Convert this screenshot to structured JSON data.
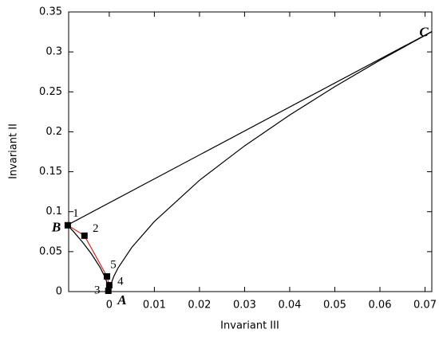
{
  "chart_data": {
    "type": "line",
    "xlabel": "Invariant III",
    "ylabel": "Invariant II",
    "xlim": [
      -0.009,
      0.0715
    ],
    "ylim": [
      0,
      0.35
    ],
    "xticks": [
      0,
      0.01,
      0.02,
      0.03,
      0.04,
      0.05,
      0.06,
      0.07
    ],
    "yticks": [
      0,
      0.05,
      0.1,
      0.15,
      0.2,
      0.25,
      0.3,
      0.35
    ],
    "series": [
      {
        "color": "#000000",
        "x": [
          -0.00926,
          0.0741
        ],
        "values": [
          0.0833,
          0.3333
        ]
      },
      {
        "color": "#000000",
        "x": [
          -0.00926,
          -0.008,
          -0.006,
          -0.004,
          -0.002,
          -0.001,
          -0.0002,
          0
        ],
        "values": [
          0.0833,
          0.0756,
          0.0624,
          0.0476,
          0.03,
          0.0189,
          0.00646,
          0
        ]
      },
      {
        "color": "#000000",
        "x": [
          0,
          0.0002,
          0.001,
          0.002,
          0.005,
          0.01,
          0.02,
          0.03,
          0.04,
          0.05,
          0.06,
          0.0741
        ],
        "values": [
          0,
          0.00646,
          0.0189,
          0.03,
          0.0553,
          0.0877,
          0.1393,
          0.1824,
          0.221,
          0.2565,
          0.2896,
          0.3333
        ]
      },
      {
        "color": "#d62728",
        "marker_color": "#000000",
        "x": [
          -0.0092,
          -0.0055,
          -0.0005,
          0,
          -0.0002
        ],
        "values": [
          0.083,
          0.07,
          0.019,
          0.008,
          0.001
        ],
        "point_labels": [
          "1",
          "2",
          "5",
          "4",
          "3"
        ]
      }
    ],
    "annotations": [
      {
        "text": "B",
        "x": -0.00926,
        "y": 0.0833
      },
      {
        "text": "A",
        "x": 0,
        "y": 0
      },
      {
        "text": "C",
        "x": 0.0741,
        "y": 0.3333
      }
    ]
  }
}
